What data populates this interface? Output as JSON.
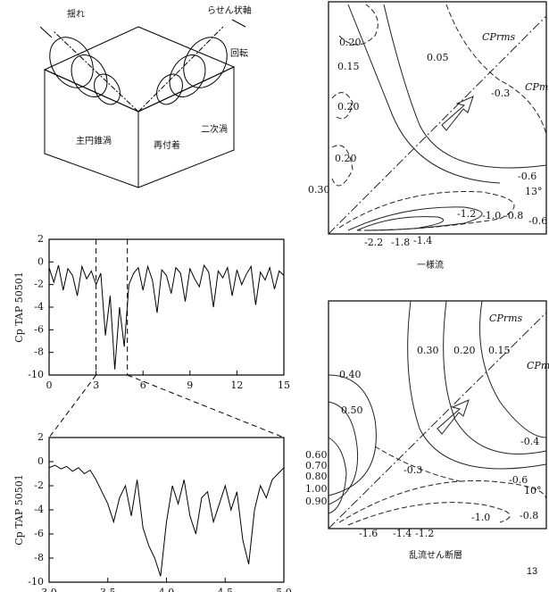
{
  "diagram": {
    "labels": [
      "揺れ",
      "らせん状軸",
      "回転",
      "主円錐渦",
      "二次渦",
      "再付着"
    ]
  },
  "chart_data": [
    {
      "type": "line",
      "ylabel": "Cp TAP 50501",
      "x": [
        0,
        0.3,
        0.6,
        0.9,
        1.2,
        1.5,
        1.8,
        2.1,
        2.4,
        2.7,
        3,
        3.3,
        3.6,
        3.9,
        4.2,
        4.5,
        4.8,
        5.1,
        5.4,
        5.7,
        6,
        6.3,
        6.6,
        6.9,
        7.2,
        7.5,
        7.8,
        8.1,
        8.4,
        8.7,
        9,
        9.3,
        9.6,
        9.9,
        10.2,
        10.5,
        10.8,
        11.1,
        11.4,
        11.7,
        12,
        12.3,
        12.6,
        12.9,
        13.2,
        13.5,
        13.8,
        14.1,
        14.4,
        14.7,
        15
      ],
      "values": [
        -0.5,
        -1.8,
        -0.3,
        -2.5,
        -0.6,
        -1.2,
        -3.0,
        -0.4,
        -1.5,
        -0.8,
        -2.0,
        -1.0,
        -6.5,
        -3.0,
        -9.5,
        -4.0,
        -7.5,
        -2.0,
        -1.0,
        -0.5,
        -2.5,
        -0.4,
        -1.6,
        -4.5,
        -0.7,
        -1.2,
        -2.8,
        -0.5,
        -1.0,
        -3.5,
        -0.6,
        -1.5,
        -2.2,
        -0.3,
        -0.9,
        -4.0,
        -0.8,
        -1.4,
        -0.5,
        -3.0,
        -0.7,
        -2.0,
        -1.1,
        -0.4,
        -3.8,
        -0.9,
        -1.6,
        -0.5,
        -2.4,
        -0.8,
        -1.2
      ],
      "color": "#000000",
      "highlight_span": [
        3,
        5
      ],
      "xlim": [
        0,
        15
      ],
      "xticks": [
        0,
        3,
        6,
        9,
        12,
        15
      ],
      "ylim": [
        -10,
        2
      ],
      "yticks": [
        2,
        0,
        -2,
        -4,
        -6,
        -8,
        -10
      ]
    },
    {
      "type": "line",
      "ylabel": "Cp TAP 50501",
      "x": [
        3,
        3.05,
        3.1,
        3.15,
        3.2,
        3.25,
        3.3,
        3.35,
        3.4,
        3.45,
        3.5,
        3.55,
        3.6,
        3.65,
        3.7,
        3.75,
        3.8,
        3.85,
        3.9,
        3.95,
        4,
        4.05,
        4.1,
        4.15,
        4.2,
        4.25,
        4.3,
        4.35,
        4.4,
        4.45,
        4.5,
        4.55,
        4.6,
        4.65,
        4.7,
        4.75,
        4.8,
        4.85,
        4.9,
        4.95,
        5
      ],
      "values": [
        -0.5,
        -0.3,
        -0.6,
        -0.4,
        -0.8,
        -0.5,
        -1.0,
        -0.7,
        -1.5,
        -2.5,
        -3.5,
        -5.0,
        -3.0,
        -2.0,
        -4.5,
        -1.5,
        -5.5,
        -7.0,
        -8.0,
        -9.5,
        -5.0,
        -2.0,
        -3.5,
        -1.5,
        -4.5,
        -6.0,
        -3.0,
        -2.5,
        -5.0,
        -3.5,
        -2.0,
        -4.0,
        -2.5,
        -6.5,
        -8.5,
        -4.0,
        -2.0,
        -3.0,
        -1.5,
        -1.0,
        -0.5
      ],
      "color": "#000000",
      "xlim": [
        3,
        5
      ],
      "xticks": [
        {
          "value": 3,
          "label": "3.0"
        },
        3.5,
        {
          "value": 4,
          "label": "4.0"
        },
        4.5,
        {
          "value": 5,
          "label": "5.0"
        }
      ],
      "ylim": [
        -10,
        2
      ],
      "yticks": [
        2,
        0,
        -2,
        -4,
        -6,
        -8,
        -10
      ]
    }
  ],
  "contours": [
    {
      "caption": "一様流",
      "legend": [
        "CPrms",
        "CPm"
      ],
      "labels": [
        "0.20",
        "0.15",
        "0.05",
        "-0.3",
        "0.20",
        "0.20",
        "0.30",
        "-0.6",
        "13°",
        "-1.2",
        "-1.0",
        "-0.8",
        "-0.6",
        "-2.2",
        "-1.8",
        "-1.4"
      ]
    },
    {
      "caption": "乱流せん断層",
      "legend": [
        "CPrms",
        "CPm"
      ],
      "labels": [
        "0.30",
        "0.20",
        "0.15",
        "0.40",
        "0.50",
        "-0.4",
        "-0.3",
        "-0.6",
        "10°",
        "-1.0",
        "-0.8",
        "0.60",
        "0.70",
        "0.80",
        "1.00",
        "0.90",
        "-1.6",
        "-1.4",
        "-1.2"
      ]
    }
  ],
  "page_number": "13"
}
